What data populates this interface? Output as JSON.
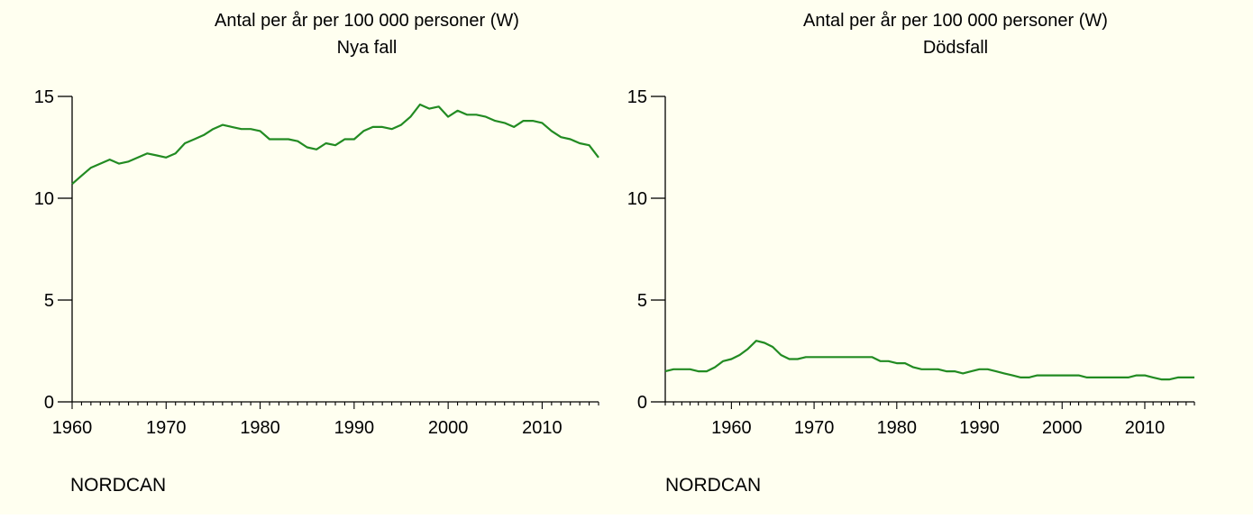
{
  "chart_data": [
    {
      "type": "line",
      "title": "Antal per år per 100 000 personer (W)",
      "subtitle": "Nya fall",
      "xlabel": "",
      "ylabel": "",
      "xlim": [
        1960,
        2016
      ],
      "ylim": [
        0,
        15
      ],
      "xticks": [
        1960,
        1970,
        1980,
        1990,
        2000,
        2010
      ],
      "yticks": [
        0,
        5,
        10,
        15
      ],
      "grid": false,
      "line_color": "#228b22",
      "source": "NORDCAN",
      "series": [
        {
          "x": [
            1960,
            1961,
            1962,
            1963,
            1964,
            1965,
            1966,
            1967,
            1968,
            1969,
            1970,
            1971,
            1972,
            1973,
            1974,
            1975,
            1976,
            1977,
            1978,
            1979,
            1980,
            1981,
            1982,
            1983,
            1984,
            1985,
            1986,
            1987,
            1988,
            1989,
            1990,
            1991,
            1992,
            1993,
            1994,
            1995,
            1996,
            1997,
            1998,
            1999,
            2000,
            2001,
            2002,
            2003,
            2004,
            2005,
            2006,
            2007,
            2008,
            2009,
            2010,
            2011,
            2012,
            2013,
            2014,
            2015,
            2016
          ],
          "values": [
            10.7,
            11.1,
            11.5,
            11.7,
            11.9,
            11.7,
            11.8,
            12.0,
            12.2,
            12.1,
            12.0,
            12.2,
            12.7,
            12.9,
            13.1,
            13.4,
            13.6,
            13.5,
            13.4,
            13.4,
            13.3,
            12.9,
            12.9,
            12.9,
            12.8,
            12.5,
            12.4,
            12.7,
            12.6,
            12.9,
            12.9,
            13.3,
            13.5,
            13.5,
            13.4,
            13.6,
            14.0,
            14.6,
            14.4,
            14.5,
            14.0,
            14.3,
            14.1,
            14.1,
            14.0,
            13.8,
            13.7,
            13.5,
            13.8,
            13.8,
            13.7,
            13.3,
            13.0,
            12.9,
            12.7,
            12.6,
            12.0
          ]
        }
      ]
    },
    {
      "type": "line",
      "title": "Antal per år per 100 000 personer (W)",
      "subtitle": "Dödsfall",
      "xlabel": "",
      "ylabel": "",
      "xlim": [
        1952,
        2016
      ],
      "ylim": [
        0,
        15
      ],
      "xticks": [
        1960,
        1970,
        1980,
        1990,
        2000,
        2010
      ],
      "yticks": [
        0,
        5,
        10,
        15
      ],
      "grid": false,
      "line_color": "#228b22",
      "source": "NORDCAN",
      "series": [
        {
          "x": [
            1952,
            1953,
            1954,
            1955,
            1956,
            1957,
            1958,
            1959,
            1960,
            1961,
            1962,
            1963,
            1964,
            1965,
            1966,
            1967,
            1968,
            1969,
            1970,
            1971,
            1972,
            1973,
            1974,
            1975,
            1976,
            1977,
            1978,
            1979,
            1980,
            1981,
            1982,
            1983,
            1984,
            1985,
            1986,
            1987,
            1988,
            1989,
            1990,
            1991,
            1992,
            1993,
            1994,
            1995,
            1996,
            1997,
            1998,
            1999,
            2000,
            2001,
            2002,
            2003,
            2004,
            2005,
            2006,
            2007,
            2008,
            2009,
            2010,
            2011,
            2012,
            2013,
            2014,
            2015,
            2016
          ],
          "values": [
            1.5,
            1.6,
            1.6,
            1.6,
            1.5,
            1.5,
            1.7,
            2.0,
            2.1,
            2.3,
            2.6,
            3.0,
            2.9,
            2.7,
            2.3,
            2.1,
            2.1,
            2.2,
            2.2,
            2.2,
            2.2,
            2.2,
            2.2,
            2.2,
            2.2,
            2.2,
            2.0,
            2.0,
            1.9,
            1.9,
            1.7,
            1.6,
            1.6,
            1.6,
            1.5,
            1.5,
            1.4,
            1.5,
            1.6,
            1.6,
            1.5,
            1.4,
            1.3,
            1.2,
            1.2,
            1.3,
            1.3,
            1.3,
            1.3,
            1.3,
            1.3,
            1.2,
            1.2,
            1.2,
            1.2,
            1.2,
            1.2,
            1.3,
            1.3,
            1.2,
            1.1,
            1.1,
            1.2,
            1.2,
            1.2
          ]
        }
      ]
    }
  ]
}
